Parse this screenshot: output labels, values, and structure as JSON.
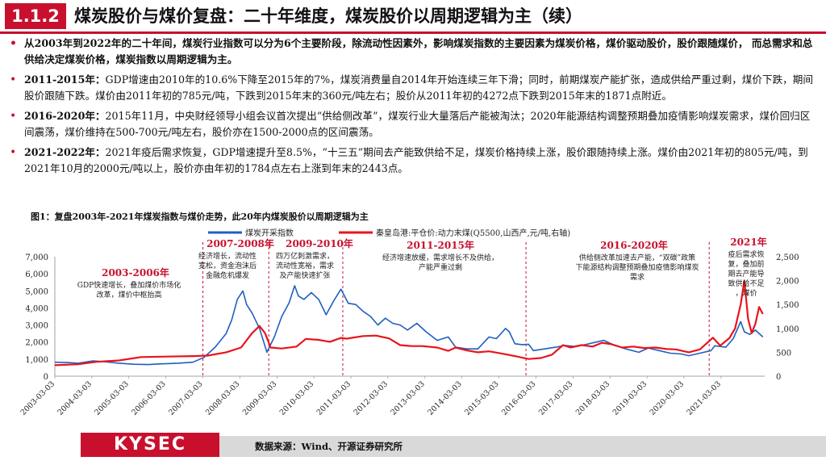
{
  "header": {
    "section_number": "1.1.2",
    "title": "煤炭股价与煤价复盘：二十年维度，煤炭股价以周期逻辑为主（续）"
  },
  "bullets": [
    {
      "lead": "",
      "text": "从2003年到2022年的二十年间，煤炭行业指数可以分为6个主要阶段，除流动性因素外，影响煤炭指数的主要因素为煤炭价格，煤价驱动股价，股价跟随煤价，  而总需求和总供给决定煤炭价格，煤炭指数以周期逻辑为主。"
    },
    {
      "lead": "2011-2015年：",
      "text": "GDP增速由2010年的10.6%下降至2015年的7%，煤炭消费量自2014年开始连续三年下滑；同时，前期煤炭产能扩张，造成供给严重过剩，煤价下跌，期间股价跟随下跌。煤价由2011年初的785元/吨，下跌到2015年末的360元/吨左右；股价从2011年初的4272点下跌到2015年末的1871点附近。"
    },
    {
      "lead": "2016-2020年：",
      "text": "2015年11月，中央财经领导小组会议首次提出“供给侧改革”，煤炭行业大量落后产能被淘汰；2020年能源结构调整预期叠加疫情影响煤炭需求，煤价回归区间震荡，煤价维持在500-700元/吨左右，股价亦在1500-2000点的区间震荡。"
    },
    {
      "lead": "2021-2022年：",
      "text": "2021年疫后需求恢复，GDP增速提升至8.5%，“十三五”期间去产能致供给不足，煤炭价格持续上涨，股价跟随持续上涨。煤价由2021年初的805元/吨，到2021年10月的2000元/吨以上，股价亦由年初的1784点左右上涨到年末的2443点。"
    }
  ],
  "figure_title": "图1：复盘2003年-2021年煤炭指数与煤价走势，此20年内煤炭股价以周期逻辑为主",
  "chart_data": {
    "type": "line",
    "title": "",
    "series": [
      {
        "name": "煤炭开采指数",
        "color": "#1f5fbf",
        "axis": "left",
        "points": [
          [
            2003.17,
            820
          ],
          [
            2003.5,
            800
          ],
          [
            2003.8,
            760
          ],
          [
            2004.2,
            900
          ],
          [
            2004.5,
            850
          ],
          [
            2004.9,
            760
          ],
          [
            2005.3,
            700
          ],
          [
            2005.7,
            680
          ],
          [
            2006.0,
            720
          ],
          [
            2006.5,
            760
          ],
          [
            2006.9,
            820
          ],
          [
            2007.2,
            1100
          ],
          [
            2007.5,
            1700
          ],
          [
            2007.8,
            2500
          ],
          [
            2007.95,
            3300
          ],
          [
            2008.1,
            4500
          ],
          [
            2008.25,
            5000
          ],
          [
            2008.35,
            4200
          ],
          [
            2008.5,
            3700
          ],
          [
            2008.7,
            2800
          ],
          [
            2008.9,
            1400
          ],
          [
            2009.1,
            2300
          ],
          [
            2009.3,
            3500
          ],
          [
            2009.5,
            4300
          ],
          [
            2009.65,
            5300
          ],
          [
            2009.75,
            4700
          ],
          [
            2009.9,
            4500
          ],
          [
            2010.1,
            4900
          ],
          [
            2010.3,
            4500
          ],
          [
            2010.5,
            3600
          ],
          [
            2010.7,
            4400
          ],
          [
            2010.9,
            5100
          ],
          [
            2011.1,
            4272
          ],
          [
            2011.3,
            4200
          ],
          [
            2011.5,
            3800
          ],
          [
            2011.7,
            3500
          ],
          [
            2011.9,
            3000
          ],
          [
            2012.1,
            3400
          ],
          [
            2012.3,
            3100
          ],
          [
            2012.5,
            3000
          ],
          [
            2012.7,
            2700
          ],
          [
            2012.95,
            3100
          ],
          [
            2013.2,
            2600
          ],
          [
            2013.5,
            2100
          ],
          [
            2013.8,
            2300
          ],
          [
            2014.0,
            1700
          ],
          [
            2014.3,
            1600
          ],
          [
            2014.6,
            1600
          ],
          [
            2014.9,
            2300
          ],
          [
            2015.1,
            2200
          ],
          [
            2015.35,
            2800
          ],
          [
            2015.45,
            2600
          ],
          [
            2015.6,
            1900
          ],
          [
            2015.8,
            1850
          ],
          [
            2015.97,
            1871
          ],
          [
            2016.1,
            1500
          ],
          [
            2016.4,
            1600
          ],
          [
            2016.7,
            1700
          ],
          [
            2016.95,
            1800
          ],
          [
            2017.2,
            1750
          ],
          [
            2017.5,
            1850
          ],
          [
            2017.8,
            2000
          ],
          [
            2018.0,
            2100
          ],
          [
            2018.3,
            1800
          ],
          [
            2018.6,
            1600
          ],
          [
            2018.95,
            1400
          ],
          [
            2019.2,
            1650
          ],
          [
            2019.5,
            1500
          ],
          [
            2019.8,
            1350
          ],
          [
            2020.1,
            1300
          ],
          [
            2020.3,
            1200
          ],
          [
            2020.6,
            1350
          ],
          [
            2020.9,
            1500
          ],
          [
            2021.0,
            1784
          ],
          [
            2021.3,
            1700
          ],
          [
            2021.5,
            2200
          ],
          [
            2021.7,
            3200
          ],
          [
            2021.8,
            2600
          ],
          [
            2021.95,
            2443
          ],
          [
            2022.1,
            2700
          ],
          [
            2022.3,
            2300
          ]
        ]
      },
      {
        "name": "秦皇岛港:平仓价:动力末煤(Q5500,山西产,元/吨,右轴)",
        "color": "#e8141c",
        "axis": "right",
        "points": [
          [
            2003.17,
            230
          ],
          [
            2003.8,
            250
          ],
          [
            2004.3,
            300
          ],
          [
            2004.9,
            330
          ],
          [
            2005.5,
            400
          ],
          [
            2006.2,
            410
          ],
          [
            2006.9,
            420
          ],
          [
            2007.3,
            430
          ],
          [
            2007.8,
            500
          ],
          [
            2008.2,
            600
          ],
          [
            2008.5,
            900
          ],
          [
            2008.7,
            1050
          ],
          [
            2008.85,
            900
          ],
          [
            2009.0,
            600
          ],
          [
            2009.3,
            580
          ],
          [
            2009.7,
            620
          ],
          [
            2009.95,
            780
          ],
          [
            2010.3,
            760
          ],
          [
            2010.6,
            720
          ],
          [
            2010.9,
            800
          ],
          [
            2011.05,
            785
          ],
          [
            2011.5,
            840
          ],
          [
            2011.85,
            850
          ],
          [
            2012.2,
            790
          ],
          [
            2012.5,
            650
          ],
          [
            2012.8,
            630
          ],
          [
            2013.1,
            630
          ],
          [
            2013.5,
            600
          ],
          [
            2013.8,
            530
          ],
          [
            2014.0,
            600
          ],
          [
            2014.3,
            540
          ],
          [
            2014.6,
            500
          ],
          [
            2014.9,
            520
          ],
          [
            2015.2,
            480
          ],
          [
            2015.6,
            420
          ],
          [
            2015.97,
            360
          ],
          [
            2016.3,
            380
          ],
          [
            2016.6,
            450
          ],
          [
            2016.9,
            650
          ],
          [
            2017.1,
            600
          ],
          [
            2017.4,
            650
          ],
          [
            2017.7,
            620
          ],
          [
            2017.95,
            700
          ],
          [
            2018.2,
            670
          ],
          [
            2018.5,
            600
          ],
          [
            2018.8,
            620
          ],
          [
            2019.1,
            590
          ],
          [
            2019.4,
            600
          ],
          [
            2019.7,
            570
          ],
          [
            2019.95,
            560
          ],
          [
            2020.3,
            500
          ],
          [
            2020.6,
            560
          ],
          [
            2020.95,
            805
          ],
          [
            2021.15,
            640
          ],
          [
            2021.4,
            800
          ],
          [
            2021.55,
            1000
          ],
          [
            2021.7,
            1500
          ],
          [
            2021.8,
            2000
          ],
          [
            2021.9,
            1200
          ],
          [
            2022.0,
            900
          ],
          [
            2022.1,
            1100
          ],
          [
            2022.2,
            1450
          ],
          [
            2022.3,
            1300
          ]
        ]
      }
    ],
    "ylim_left": [
      0,
      7000
    ],
    "ylim_right": [
      0,
      2500
    ],
    "yticks_left": [
      "7,000",
      "6,000",
      "5,000",
      "4,000",
      "3,000",
      "2,000",
      "1,000",
      "0"
    ],
    "yticks_right": [
      "2,500",
      "2,000",
      "1,500",
      "1,000",
      "500",
      "0"
    ],
    "xticks": [
      "2003-03-03",
      "2004-03-03",
      "2005-03-03",
      "2006-03-03",
      "2007-03-03",
      "2008-03-03",
      "2009-03-03",
      "2010-03-03",
      "2011-03-03",
      "2012-03-03",
      "2013-03-03",
      "2014-03-03",
      "2015-03-03",
      "2016-03-03",
      "2017-03-03",
      "2018-03-03",
      "2019-03-03",
      "2020-03-03",
      "2021-03-03"
    ],
    "phase_dividers": [
      2007.17,
      2008.95,
      2010.95,
      2015.9,
      2020.85
    ],
    "phases": [
      {
        "label": "2003-2006年",
        "note": "GDP快速增长，叠加煤价市场化改革，煤价中枢抬高"
      },
      {
        "label": "2007-2008年",
        "note": "经济增长，流动性宽松，资金泡沫后金融危机爆发"
      },
      {
        "label": "2009-2010年",
        "note": "四万亿刺激需求，流动性宽裕，需求及产能快速扩张"
      },
      {
        "label": "2011-2015年",
        "note": "经济增速放缓，需求增长不及供给，产能严重过剩"
      },
      {
        "label": "2016-2020年",
        "note": "供给侧改革加速去产能，“双碳”政策下能源结构调整预期叠加疫情影响煤炭需求"
      },
      {
        "label": "2021年",
        "note": "疫后需求恢复，叠加前期去产能导致供给不足，煤价"
      }
    ]
  },
  "footer": {
    "logo": "KYSEC",
    "source": "数据来源：Wind、开源证券研究所"
  }
}
